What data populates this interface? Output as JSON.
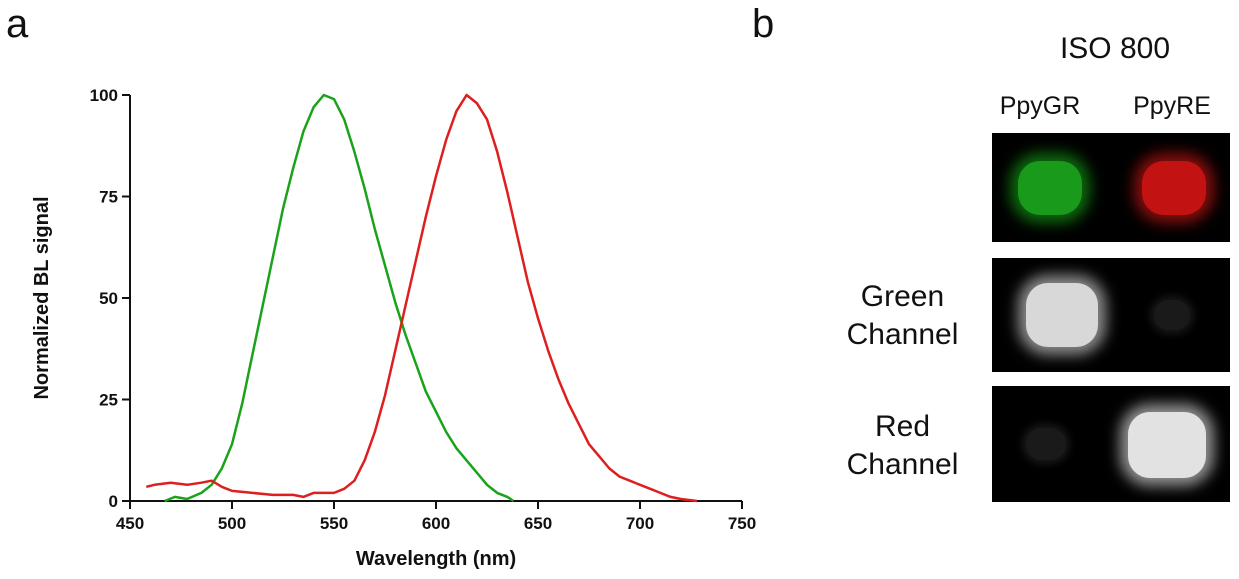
{
  "panels": {
    "a": "a",
    "b": "b"
  },
  "chart_data": {
    "type": "line",
    "xlabel": "Wavelength (nm)",
    "ylabel": "Normalized BL signal",
    "xlim": [
      450,
      750
    ],
    "ylim": [
      0,
      100
    ],
    "x_ticks": [
      "450",
      "500",
      "550",
      "600",
      "650",
      "700",
      "750"
    ],
    "y_ticks": [
      "0",
      "25",
      "50",
      "75",
      "100"
    ],
    "grid": false,
    "series": [
      {
        "color": "#1aa31a",
        "points": [
          [
            467,
            0
          ],
          [
            472,
            1
          ],
          [
            478,
            0.5
          ],
          [
            485,
            2
          ],
          [
            490,
            4
          ],
          [
            495,
            8
          ],
          [
            500,
            14
          ],
          [
            505,
            24
          ],
          [
            510,
            36
          ],
          [
            515,
            48
          ],
          [
            520,
            60
          ],
          [
            525,
            72
          ],
          [
            530,
            82
          ],
          [
            535,
            91
          ],
          [
            540,
            97
          ],
          [
            545,
            100
          ],
          [
            550,
            99
          ],
          [
            555,
            94
          ],
          [
            560,
            86
          ],
          [
            565,
            77
          ],
          [
            570,
            67
          ],
          [
            575,
            58
          ],
          [
            580,
            49
          ],
          [
            585,
            41
          ],
          [
            590,
            34
          ],
          [
            595,
            27
          ],
          [
            600,
            22
          ],
          [
            605,
            17
          ],
          [
            610,
            13
          ],
          [
            615,
            10
          ],
          [
            620,
            7
          ],
          [
            625,
            4
          ],
          [
            630,
            2
          ],
          [
            635,
            1
          ],
          [
            638,
            0
          ]
        ]
      },
      {
        "color": "#dd1f1f",
        "points": [
          [
            458,
            3.5
          ],
          [
            462,
            4
          ],
          [
            470,
            4.5
          ],
          [
            478,
            4
          ],
          [
            485,
            4.5
          ],
          [
            490,
            5
          ],
          [
            495,
            3.5
          ],
          [
            500,
            2.5
          ],
          [
            510,
            2
          ],
          [
            520,
            1.5
          ],
          [
            530,
            1.5
          ],
          [
            535,
            1
          ],
          [
            540,
            2
          ],
          [
            550,
            2
          ],
          [
            555,
            3
          ],
          [
            560,
            5
          ],
          [
            565,
            10
          ],
          [
            570,
            17
          ],
          [
            575,
            26
          ],
          [
            580,
            37
          ],
          [
            585,
            48
          ],
          [
            590,
            59
          ],
          [
            595,
            70
          ],
          [
            600,
            80
          ],
          [
            605,
            89
          ],
          [
            610,
            96
          ],
          [
            615,
            100
          ],
          [
            620,
            98
          ],
          [
            625,
            94
          ],
          [
            630,
            86
          ],
          [
            635,
            76
          ],
          [
            640,
            65
          ],
          [
            645,
            54
          ],
          [
            650,
            45
          ],
          [
            655,
            37
          ],
          [
            660,
            30
          ],
          [
            665,
            24
          ],
          [
            670,
            19
          ],
          [
            675,
            14
          ],
          [
            680,
            11
          ],
          [
            685,
            8
          ],
          [
            690,
            6
          ],
          [
            695,
            5
          ],
          [
            700,
            4
          ],
          [
            705,
            3
          ],
          [
            710,
            2
          ],
          [
            715,
            1
          ],
          [
            720,
            0.5
          ],
          [
            725,
            0.2
          ],
          [
            728,
            0
          ]
        ]
      }
    ]
  },
  "panel_b": {
    "title": "ISO 800",
    "columns": [
      "PpyGR",
      "PpyRE"
    ],
    "rows": [
      {
        "label_line1": "",
        "label_line2": ""
      },
      {
        "label_line1": "Green",
        "label_line2": "Channel"
      },
      {
        "label_line1": "Red",
        "label_line2": "Channel"
      }
    ]
  }
}
